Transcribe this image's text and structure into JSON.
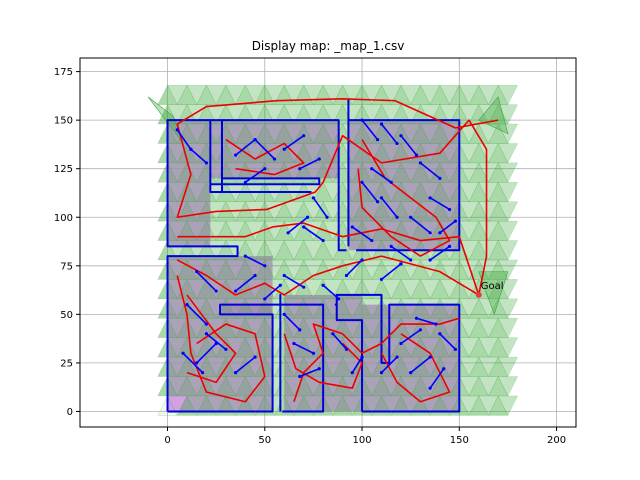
{
  "chart_data": {
    "type": "scatter",
    "title": "Display map: _map_1.csv",
    "xlabel": "",
    "ylabel": "",
    "xlim": [
      -45,
      210
    ],
    "ylim": [
      -8,
      182
    ],
    "x_ticks": [
      0,
      50,
      100,
      150,
      200
    ],
    "y_ticks": [
      0,
      25,
      50,
      75,
      100,
      125,
      150,
      175
    ],
    "grid": true,
    "annotation": {
      "text": "Goal",
      "x": 160,
      "y": 60
    },
    "colors": {
      "walls": "#0000dd",
      "path": "#ee0000",
      "obstacle_fill": "#d080e8",
      "explored_fill": "#3aa63a",
      "goal": "#d94040"
    },
    "series": [
      {
        "name": "walls",
        "segments": [
          [
            [
              0,
              0
            ],
            [
              0,
              80
            ],
            [
              36,
              80
            ],
            [
              36,
              85
            ],
            [
              0,
              85
            ],
            [
              0,
              150
            ],
            [
              28,
              150
            ],
            [
              28,
              113
            ],
            [
              73,
              113
            ],
            [
              73,
              113
            ]
          ],
          [
            [
              0,
              0
            ],
            [
              54,
              0
            ],
            [
              54,
              50
            ],
            [
              27,
              50
            ],
            [
              27,
              55
            ],
            [
              80,
              55
            ],
            [
              80,
              0
            ],
            [
              59,
              0
            ]
          ],
          [
            [
              100,
              0
            ],
            [
              100,
              47
            ],
            [
              87,
              47
            ],
            [
              87,
              55
            ],
            [
              86,
              55
            ]
          ],
          [
            [
              100,
              0
            ],
            [
              150,
              0
            ],
            [
              150,
              55
            ],
            [
              114,
              55
            ],
            [
              114,
              25
            ],
            [
              110,
              25
            ],
            [
              110,
              60
            ],
            [
              87,
              60
            ],
            [
              87,
              55
            ]
          ],
          [
            [
              22,
              150
            ],
            [
              22,
              113
            ],
            [
              74,
              113
            ]
          ],
          [
            [
              28,
              150
            ],
            [
              88,
              150
            ],
            [
              88,
              83
            ],
            [
              92,
              83
            ]
          ],
          [
            [
              93,
              150
            ],
            [
              150,
              150
            ],
            [
              150,
              83
            ],
            [
              97,
              83
            ]
          ],
          [
            [
              22,
              117
            ],
            [
              78,
              117
            ],
            [
              78,
              120
            ],
            [
              28,
              120
            ],
            [
              28,
              150
            ]
          ],
          [
            [
              93,
              161
            ],
            [
              93,
              85
            ]
          ],
          [
            [
              58,
              0
            ],
            [
              58,
              60
            ],
            [
              58,
              0
            ]
          ]
        ]
      },
      {
        "name": "path",
        "segments": [
          [
            [
              170,
              150
            ],
            [
              148,
              146
            ],
            [
              117,
              160
            ],
            [
              90,
              161
            ],
            [
              56,
              160
            ],
            [
              20,
              157
            ],
            [
              5,
              148
            ],
            [
              12,
              122
            ],
            [
              5,
              100
            ],
            [
              25,
              103
            ],
            [
              51,
              104
            ],
            [
              76,
              113
            ],
            [
              80,
              118
            ],
            [
              90,
              142
            ],
            [
              110,
              128
            ],
            [
              140,
              133
            ],
            [
              155,
              150
            ],
            [
              164,
              135
            ],
            [
              164,
              80
            ],
            [
              160,
              60
            ]
          ],
          [
            [
              5,
              90
            ],
            [
              40,
              90
            ],
            [
              54,
              95
            ],
            [
              70,
              97
            ],
            [
              90,
              90
            ],
            [
              110,
              94
            ],
            [
              130,
              88
            ],
            [
              150,
              90
            ],
            [
              160,
              60
            ]
          ],
          [
            [
              5,
              78
            ],
            [
              20,
              70
            ],
            [
              35,
              60
            ],
            [
              50,
              66
            ],
            [
              60,
              60
            ],
            [
              75,
              70
            ],
            [
              90,
              75
            ],
            [
              110,
              80
            ],
            [
              140,
              72
            ],
            [
              160,
              60
            ]
          ],
          [
            [
              5,
              70
            ],
            [
              10,
              50
            ],
            [
              12,
              30
            ],
            [
              20,
              10
            ],
            [
              40,
              5
            ],
            [
              50,
              18
            ],
            [
              45,
              40
            ],
            [
              30,
              45
            ],
            [
              15,
              35
            ]
          ],
          [
            [
              65,
              5
            ],
            [
              70,
              20
            ],
            [
              80,
              30
            ],
            [
              75,
              45
            ],
            [
              90,
              40
            ],
            [
              100,
              30
            ],
            [
              110,
              35
            ],
            [
              120,
              45
            ],
            [
              140,
              45
            ],
            [
              150,
              48
            ]
          ],
          [
            [
              60,
              40
            ],
            [
              66,
              22
            ],
            [
              78,
              15
            ],
            [
              95,
              12
            ],
            [
              100,
              25
            ],
            [
              90,
              35
            ]
          ],
          [
            [
              100,
              140
            ],
            [
              112,
              120
            ],
            [
              125,
              110
            ],
            [
              138,
              100
            ],
            [
              145,
              88
            ],
            [
              130,
              80
            ],
            [
              115,
              90
            ],
            [
              100,
              105
            ],
            [
              98,
              125
            ]
          ],
          [
            [
              30,
              140
            ],
            [
              45,
              130
            ],
            [
              60,
              138
            ],
            [
              70,
              128
            ],
            [
              55,
              122
            ],
            [
              35,
              125
            ]
          ],
          [
            [
              10,
              60
            ],
            [
              25,
              40
            ],
            [
              35,
              30
            ],
            [
              25,
              15
            ],
            [
              10,
              20
            ]
          ],
          [
            [
              120,
              40
            ],
            [
              135,
              30
            ],
            [
              145,
              10
            ],
            [
              130,
              5
            ],
            [
              118,
              15
            ],
            [
              110,
              30
            ]
          ]
        ]
      },
      {
        "name": "blue_edges",
        "segments": [
          [
            [
              5,
              145
            ],
            [
              12,
              135
            ]
          ],
          [
            [
              12,
              135
            ],
            [
              20,
              128
            ]
          ],
          [
            [
              35,
              132
            ],
            [
              45,
              140
            ]
          ],
          [
            [
              45,
              140
            ],
            [
              55,
              130
            ]
          ],
          [
            [
              60,
              135
            ],
            [
              70,
              142
            ]
          ],
          [
            [
              50,
              125
            ],
            [
              40,
              118
            ]
          ],
          [
            [
              68,
              125
            ],
            [
              78,
              130
            ]
          ],
          [
            [
              75,
              110
            ],
            [
              82,
              100
            ]
          ],
          [
            [
              70,
              95
            ],
            [
              80,
              88
            ]
          ],
          [
            [
              62,
              92
            ],
            [
              72,
              100
            ]
          ],
          [
            [
              40,
              80
            ],
            [
              50,
              75
            ]
          ],
          [
            [
              45,
              70
            ],
            [
              35,
              62
            ]
          ],
          [
            [
              15,
              72
            ],
            [
              25,
              62
            ]
          ],
          [
            [
              10,
              55
            ],
            [
              20,
              45
            ]
          ],
          [
            [
              20,
              40
            ],
            [
              30,
              32
            ]
          ],
          [
            [
              8,
              30
            ],
            [
              18,
              20
            ]
          ],
          [
            [
              15,
              25
            ],
            [
              25,
              35
            ]
          ],
          [
            [
              35,
              20
            ],
            [
              45,
              28
            ]
          ],
          [
            [
              60,
              50
            ],
            [
              68,
              42
            ]
          ],
          [
            [
              65,
              35
            ],
            [
              75,
              30
            ]
          ],
          [
            [
              68,
              18
            ],
            [
              78,
              22
            ]
          ],
          [
            [
              85,
              40
            ],
            [
              92,
              32
            ]
          ],
          [
            [
              95,
              20
            ],
            [
              100,
              28
            ]
          ],
          [
            [
              110,
              20
            ],
            [
              118,
              28
            ]
          ],
          [
            [
              120,
              35
            ],
            [
              130,
              42
            ]
          ],
          [
            [
              125,
              20
            ],
            [
              135,
              28
            ]
          ],
          [
            [
              135,
              12
            ],
            [
              142,
              22
            ]
          ],
          [
            [
              140,
              40
            ],
            [
              148,
              32
            ]
          ],
          [
            [
              128,
              48
            ],
            [
              138,
              45
            ]
          ],
          [
            [
              100,
              150
            ],
            [
              108,
              140
            ]
          ],
          [
            [
              110,
              148
            ],
            [
              118,
              138
            ]
          ],
          [
            [
              120,
              142
            ],
            [
              128,
              132
            ]
          ],
          [
            [
              130,
              128
            ],
            [
              140,
              120
            ]
          ],
          [
            [
              135,
              110
            ],
            [
              145,
              104
            ]
          ],
          [
            [
              125,
              100
            ],
            [
              135,
              92
            ]
          ],
          [
            [
              110,
              110
            ],
            [
              118,
              100
            ]
          ],
          [
            [
              100,
              118
            ],
            [
              108,
              108
            ]
          ],
          [
            [
              95,
              95
            ],
            [
              105,
              88
            ]
          ],
          [
            [
              115,
              85
            ],
            [
              125,
              78
            ]
          ],
          [
            [
              135,
              78
            ],
            [
              145,
              85
            ]
          ],
          [
            [
              140,
              92
            ],
            [
              148,
              98
            ]
          ],
          [
            [
              105,
              125
            ],
            [
              115,
              118
            ]
          ],
          [
            [
              92,
              70
            ],
            [
              100,
              78
            ]
          ],
          [
            [
              110,
              68
            ],
            [
              120,
              76
            ]
          ],
          [
            [
              80,
              65
            ],
            [
              88,
              58
            ]
          ],
          [
            [
              60,
              70
            ],
            [
              70,
              64
            ]
          ],
          [
            [
              50,
              58
            ],
            [
              58,
              65
            ]
          ]
        ]
      }
    ]
  }
}
